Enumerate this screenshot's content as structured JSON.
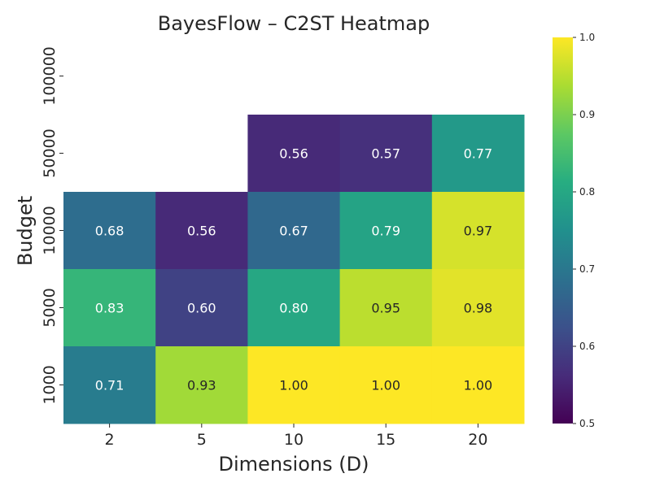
{
  "chart_data": {
    "type": "heatmap",
    "title": "BayesFlow – C2ST Heatmap",
    "xlabel": "Dimensions (D)",
    "ylabel": "Budget",
    "x_categories": [
      "2",
      "5",
      "10",
      "15",
      "20"
    ],
    "y_categories": [
      "100000",
      "50000",
      "10000",
      "5000",
      "1000"
    ],
    "values": [
      [
        null,
        null,
        null,
        null,
        null
      ],
      [
        null,
        null,
        0.56,
        0.57,
        0.77
      ],
      [
        0.68,
        0.56,
        0.67,
        0.79,
        0.97
      ],
      [
        0.83,
        0.6,
        0.8,
        0.95,
        0.98
      ],
      [
        0.71,
        0.93,
        1.0,
        1.0,
        1.0
      ]
    ],
    "colormap": "viridis",
    "vmin": 0.5,
    "vmax": 1.0,
    "colorbar_ticks": [
      "0.5",
      "0.6",
      "0.7",
      "0.8",
      "0.9",
      "1.0"
    ],
    "annotation_format": "2 decimals"
  }
}
